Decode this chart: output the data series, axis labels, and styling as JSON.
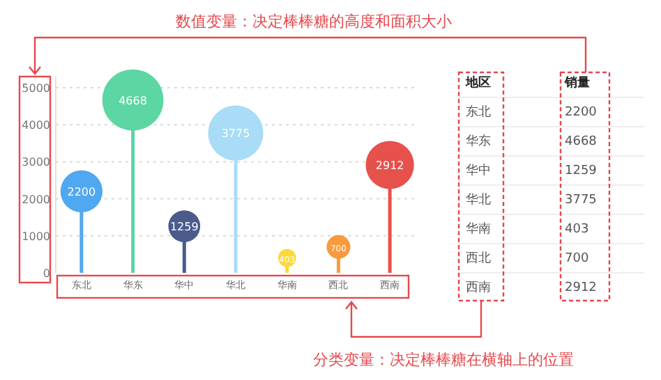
{
  "chart_data": [
    {
      "type": "lollipop",
      "categories": [
        "东北",
        "华东",
        "华中",
        "华北",
        "华南",
        "西北",
        "西南"
      ],
      "values": [
        2200,
        4668,
        1259,
        3775,
        403,
        700,
        2912
      ],
      "sizes": [
        0.47,
        1,
        0.27,
        0.81,
        0.086,
        0.15,
        0.62
      ],
      "colors": [
        "#4fa8f0",
        "#5cd6a2",
        "#4a5b8c",
        "#a8dcf7",
        "#fcd83a",
        "#f99a3e",
        "#e6514c"
      ],
      "ylim": [
        0,
        5000
      ],
      "yticks": [
        0,
        1000,
        2000,
        3000,
        4000,
        5000
      ],
      "grid": "y",
      "data_labels": true,
      "annotations": [
        "数值变量：决定棒棒糖的高度和面积大小",
        "分类变量：决定棒棒糖在横轴上的位置"
      ]
    },
    {
      "type": "other",
      "categories": [
        "东北",
        "华东",
        "华中",
        "华北",
        "华南",
        "西北",
        "西南"
      ],
      "values": [
        2200,
        4668,
        1259,
        3775,
        403,
        700,
        2912
      ],
      "data_labels": true,
      "annotations": [
        "地区",
        "销量"
      ]
    }
  ]
}
